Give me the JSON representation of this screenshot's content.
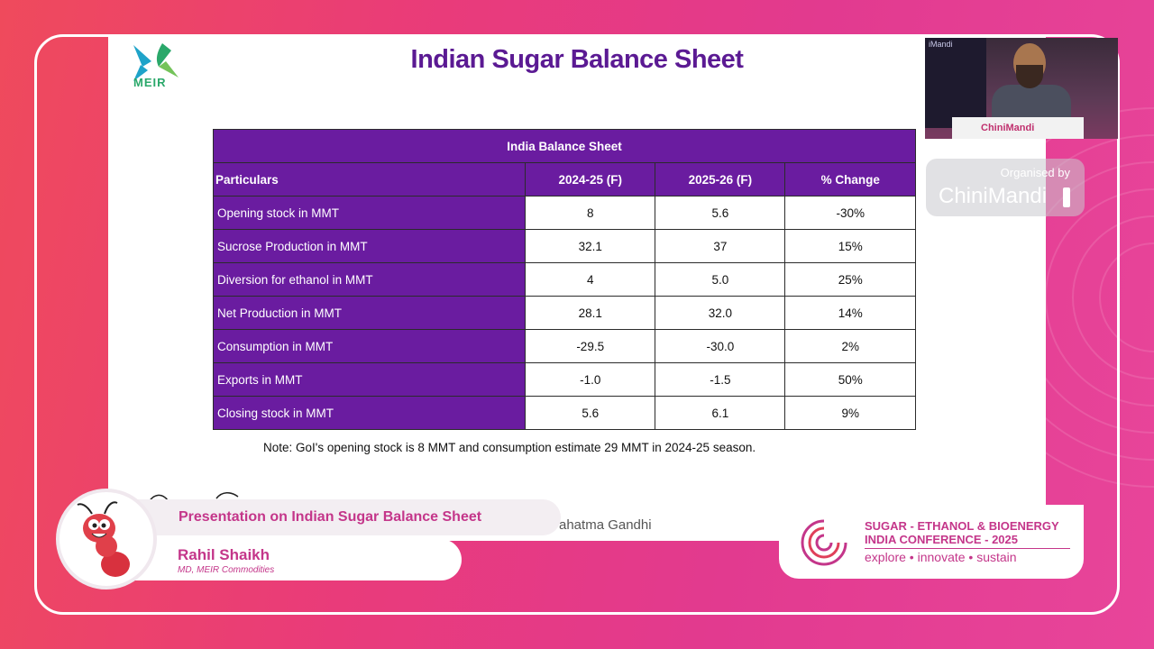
{
  "slide": {
    "logo_text": "MEIR",
    "title": "Indian Sugar Balance Sheet",
    "table": {
      "caption": "India Balance Sheet",
      "headers": [
        "Particulars",
        "2024-25 (F)",
        "2025-26 (F)",
        "% Change"
      ],
      "rows": [
        [
          "Opening stock in MMT",
          "8",
          "5.6",
          "-30%"
        ],
        [
          "Sucrose Production in MMT",
          "32.1",
          "37",
          "15%"
        ],
        [
          "Diversion for ethanol in MMT",
          "4",
          "5.0",
          "25%"
        ],
        [
          "Net Production in MMT",
          "28.1",
          "32.0",
          "14%"
        ],
        [
          "Consumption in MMT",
          "-29.5",
          "-30.0",
          "2%"
        ],
        [
          "Exports in MMT",
          "-1.0",
          "-1.5",
          "50%"
        ],
        [
          "Closing stock in MMT",
          "5.6",
          "6.1",
          "9%"
        ]
      ]
    },
    "note": "Note: GoI's opening stock is 8 MMT and consumption estimate 29 MMT in 2024-25 season.",
    "quote_fragment": "ahatma Gandhi"
  },
  "speaker_video": {
    "screen_text": "iMandi",
    "podium_text": "ChiniMandi"
  },
  "organiser": {
    "label": "Organised by",
    "name": "ChiniMandi"
  },
  "lower_third": {
    "presentation_title": "Presentation on Indian Sugar Balance Sheet",
    "speaker_name": "Rahil Shaikh",
    "speaker_role": "MD, MEIR Commodities"
  },
  "conference": {
    "line1": "SUGAR - ETHANOL & BIOENERGY",
    "line2": "INDIA CONFERENCE - 2025",
    "tagline": "explore • innovate • sustain"
  },
  "colors": {
    "table_purple": "#6a1ca0",
    "title_purple": "#5b1a93",
    "brand_pink": "#c4368a"
  }
}
